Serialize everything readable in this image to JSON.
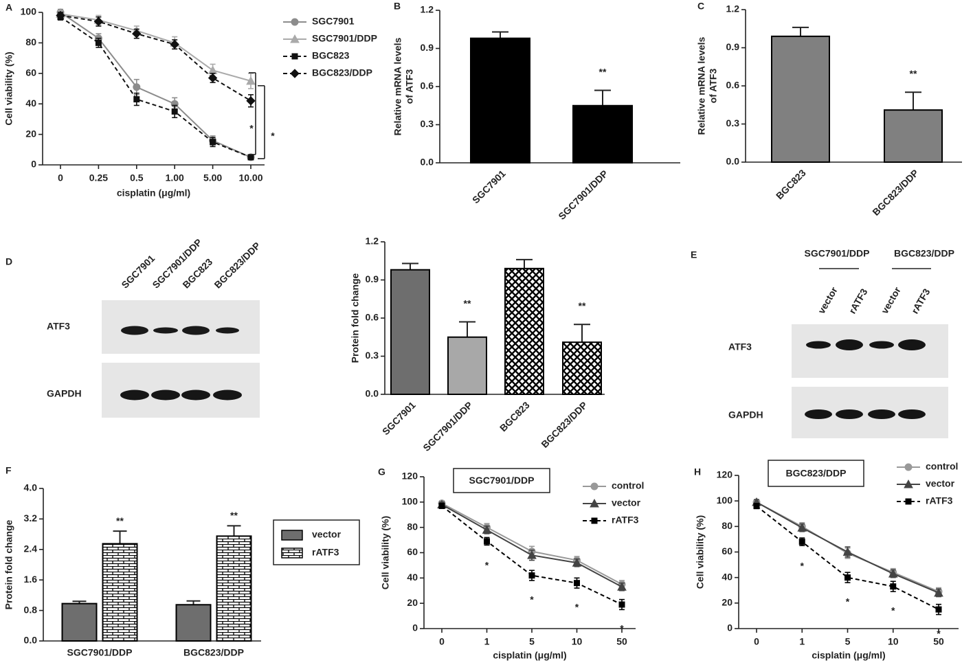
{
  "chart_data": [
    {
      "type": "line",
      "panel": "A",
      "xlabel": "cisplatin (μg/ml)",
      "ylabel": "Cell viability (%)",
      "categories": [
        "0",
        "0.25",
        "0.5",
        "1.00",
        "5.00",
        "10.00"
      ],
      "ylim": [
        0,
        100
      ],
      "yticks": [
        0,
        20,
        40,
        60,
        80,
        100
      ],
      "series": [
        {
          "name": "SGC7901",
          "color": "#8c8c8c",
          "marker": "circle",
          "dash": false,
          "values": [
            100,
            83,
            51,
            40,
            16,
            5
          ],
          "errors": [
            2,
            3,
            5,
            4,
            3,
            1
          ]
        },
        {
          "name": "SGC7901/DDP",
          "color": "#aaaaaa",
          "marker": "triangle",
          "dash": false,
          "values": [
            99,
            95,
            88,
            80,
            62,
            55
          ],
          "errors": [
            2,
            3,
            3,
            4,
            4,
            5
          ]
        },
        {
          "name": "BGC823",
          "color": "#111111",
          "marker": "square",
          "dash": true,
          "values": [
            97,
            80,
            43,
            35,
            15,
            5
          ],
          "errors": [
            2,
            3,
            4,
            4,
            3,
            1
          ]
        },
        {
          "name": "BGC823/DDP",
          "color": "#111111",
          "marker": "diamond",
          "dash": true,
          "values": [
            98,
            94,
            86,
            79,
            57,
            42
          ],
          "errors": [
            2,
            3,
            3,
            3,
            3,
            4
          ]
        }
      ],
      "annotations": [
        "*",
        "*"
      ]
    },
    {
      "type": "bar",
      "panel": "B",
      "ylabel": [
        "Relative mRNA levels",
        "of ATF3"
      ],
      "categories": [
        "SGC7901",
        "SGC7901/DDP"
      ],
      "values": [
        0.98,
        0.45
      ],
      "errors": [
        0.05,
        0.12
      ],
      "colors": [
        "#000000",
        "#000000"
      ],
      "patterns": [
        null,
        null
      ],
      "value_annotations": [
        null,
        "**"
      ],
      "ylim": [
        0,
        1.2
      ],
      "yticks": [
        {
          "value": 0,
          "label": "0.0"
        },
        0.3,
        0.6,
        0.9,
        1.2
      ]
    },
    {
      "type": "bar",
      "panel": "C",
      "ylabel": [
        "Relative mRNA levels",
        "of ATF3"
      ],
      "categories": [
        "BGC823",
        "BGC823/DDP"
      ],
      "values": [
        0.99,
        0.41
      ],
      "errors": [
        0.07,
        0.14
      ],
      "colors": [
        "#808080",
        "#808080"
      ],
      "patterns": [
        null,
        null
      ],
      "value_annotations": [
        null,
        "**"
      ],
      "ylim": [
        0,
        1.2
      ],
      "yticks": [
        {
          "value": 0,
          "label": "0.0"
        },
        0.3,
        0.6,
        0.9,
        1.2
      ]
    },
    {
      "type": "bar",
      "ylabel": "Protein fold change",
      "categories": [
        "SGC7901",
        "SGC7901/DDP",
        "BGC823",
        "BGC823/DDP"
      ],
      "values": [
        0.98,
        0.45,
        0.99,
        0.41
      ],
      "errors": [
        0.05,
        0.12,
        0.07,
        0.14
      ],
      "colors": [
        "#6e6e6e",
        "#a8a8a8",
        "#000000",
        "#000000"
      ],
      "patterns": [
        null,
        null,
        "crosshatch",
        "crosshatch"
      ],
      "value_annotations": [
        null,
        "**",
        null,
        "**"
      ],
      "ylim": [
        0,
        1.2
      ],
      "yticks": [
        {
          "value": 0,
          "label": "0.0"
        },
        0.3,
        0.6,
        0.9,
        1.2
      ]
    },
    {
      "type": "grouped_bar",
      "panel": "F",
      "ylabel": "Protein fold change",
      "categories": [
        "SGC7901/DDP",
        "BGC823/DDP"
      ],
      "series": [
        {
          "name": "vector",
          "color": "#6e6e6e",
          "pattern": null,
          "values": [
            0.98,
            0.95
          ],
          "errors": [
            0.06,
            0.1
          ]
        },
        {
          "name": "rATF3",
          "color": "#000000",
          "pattern": "brick",
          "values": [
            2.55,
            2.75
          ],
          "errors": [
            0.33,
            0.27
          ],
          "value_annotations": [
            "**",
            "**"
          ]
        }
      ],
      "ylim": [
        0,
        4
      ],
      "yticks": [
        {
          "value": 0,
          "label": "0.0"
        },
        0.8,
        1.6,
        2.4,
        3.2,
        {
          "value": 4,
          "label": "4.0"
        }
      ]
    },
    {
      "type": "line",
      "panel": "G",
      "title": "SGC7901/DDP",
      "xlabel": "cisplatin (μg/ml)",
      "ylabel": "Cell viability (%)",
      "categories": [
        "0",
        "1",
        "5",
        "10",
        "50"
      ],
      "ylim": [
        0,
        120
      ],
      "yticks": [
        0,
        20,
        40,
        60,
        80,
        100,
        120
      ],
      "series": [
        {
          "name": "control",
          "color": "#999999",
          "marker": "circle",
          "dash": false,
          "values": [
            99,
            80,
            61,
            54,
            35
          ],
          "errors": [
            2,
            3,
            4,
            3,
            3
          ]
        },
        {
          "name": "vector",
          "color": "#444444",
          "marker": "triangle",
          "dash": false,
          "values": [
            98,
            78,
            58,
            52,
            33
          ],
          "errors": [
            2,
            3,
            4,
            3,
            3
          ]
        },
        {
          "name": "rATF3",
          "color": "#000000",
          "marker": "square",
          "dash": true,
          "values": [
            97,
            69,
            42,
            36,
            19
          ],
          "errors": [
            2,
            3,
            4,
            4,
            4
          ],
          "value_annotations": [
            null,
            "*",
            "*",
            "*",
            "*"
          ]
        }
      ]
    },
    {
      "type": "line",
      "panel": "H",
      "title": "BGC823/DDP",
      "xlabel": "cisplatin (μg/ml)",
      "ylabel": "Cell viability (%)",
      "categories": [
        "0",
        "1",
        "5",
        "10",
        "50"
      ],
      "ylim": [
        0,
        120
      ],
      "yticks": [
        0,
        20,
        40,
        60,
        80,
        100,
        120
      ],
      "series": [
        {
          "name": "control",
          "color": "#999999",
          "marker": "circle",
          "dash": false,
          "values": [
            99,
            80,
            59,
            44,
            29
          ],
          "errors": [
            2,
            3,
            4,
            3,
            3
          ]
        },
        {
          "name": "vector",
          "color": "#444444",
          "marker": "triangle",
          "dash": false,
          "values": [
            99,
            79,
            60,
            43,
            28
          ],
          "errors": [
            2,
            3,
            4,
            3,
            3
          ]
        },
        {
          "name": "rATF3",
          "color": "#000000",
          "marker": "square",
          "dash": true,
          "values": [
            96,
            68,
            40,
            33,
            15
          ],
          "errors": [
            2,
            3,
            4,
            4,
            4
          ],
          "value_annotations": [
            null,
            "*",
            "*",
            "*",
            "*"
          ]
        }
      ]
    }
  ],
  "blots": {
    "D": {
      "panel": "D",
      "lanes": [
        "SGC7901",
        "SGC7901/DDP",
        "BGC823",
        "BGC823/DDP"
      ],
      "rows": [
        "ATF3",
        "GAPDH"
      ]
    },
    "E": {
      "panel": "E",
      "groups": [
        "SGC7901/DDP",
        "BGC823/DDP"
      ],
      "lanes": [
        "vector",
        "rATF3",
        "vector",
        "rATF3"
      ],
      "rows": [
        "ATF3",
        "GAPDH"
      ]
    }
  }
}
